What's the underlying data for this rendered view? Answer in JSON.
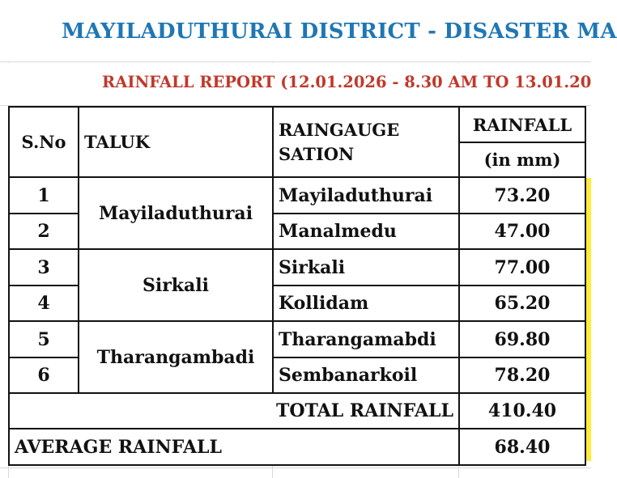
{
  "title": "MAYILADUTHURAI DISTRICT - DISASTER MA",
  "subtitle": "RAINFALL REPORT (12.01.2026 - 8.30 AM TO 13.01.20",
  "header": {
    "sno": "S.No",
    "taluk": "TALUK",
    "station_line1": "RAINGAUGE",
    "station_line2": "SATION",
    "rainfall": "RAINFALL",
    "unit": "(in mm)"
  },
  "rows": [
    {
      "sno": "1",
      "taluk": "Mayiladuthurai",
      "station": "Mayiladuthurai",
      "rainfall": "73.20"
    },
    {
      "sno": "2",
      "taluk": "",
      "station": "Manalmedu",
      "rainfall": "47.00"
    },
    {
      "sno": "3",
      "taluk": "Sirkali",
      "station": "Sirkali",
      "rainfall": "77.00"
    },
    {
      "sno": "4",
      "taluk": "",
      "station": "Kollidam",
      "rainfall": "65.20"
    },
    {
      "sno": "5",
      "taluk": "Tharangambadi",
      "station": "Tharangamabdi",
      "rainfall": "69.80"
    },
    {
      "sno": "6",
      "taluk": "",
      "station": "Sembanarkoil",
      "rainfall": "78.20"
    }
  ],
  "total": {
    "label": "TOTAL RAINFALL",
    "value": "410.40"
  },
  "average": {
    "label": "AVERAGE RAINFALL",
    "value": "68.40"
  },
  "colors": {
    "title": "#1f77b4",
    "subtitle": "#c0392b",
    "highlight": "#ffeb3b"
  }
}
